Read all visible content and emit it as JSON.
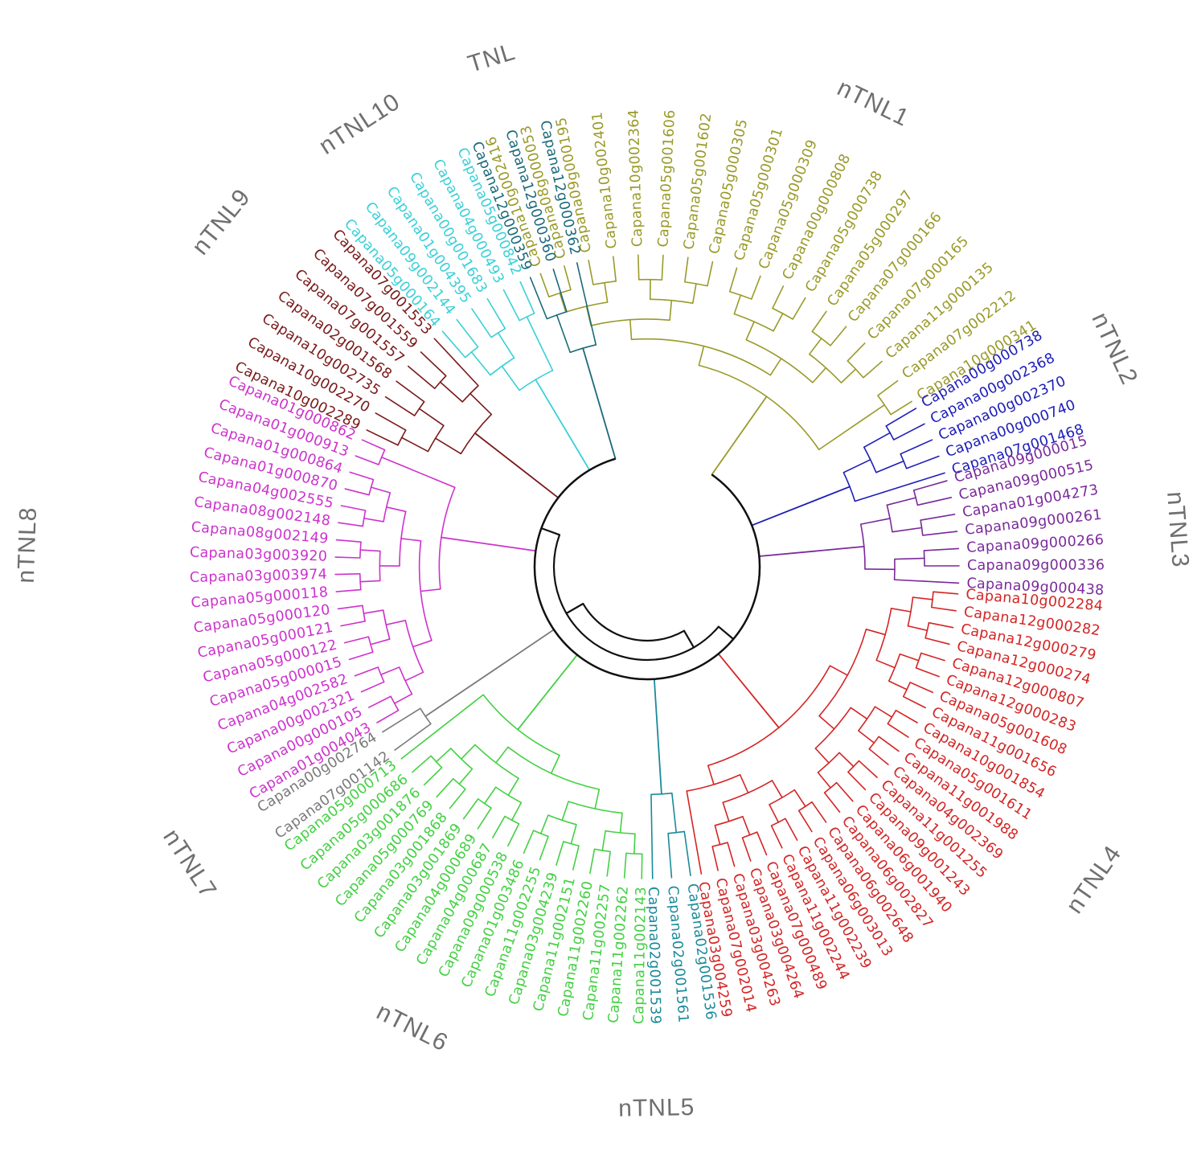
{
  "diagram": {
    "type": "circular-phylogenetic-tree",
    "clades": [
      {
        "name": "nTNL1",
        "color": "#9a9a2a",
        "leaves": [
          "Capana10g002416",
          "Capana08g000053",
          "Capana09g000195",
          "Capana10g002401",
          "Capana10g002364",
          "Capana05g001606",
          "Capana05g001602",
          "Capana05g000305",
          "Capana05g000301",
          "Capana05g000309",
          "Capana00g000808",
          "Capana05g000738",
          "Capana05g000297",
          "Capana07g000166",
          "Capana07g000165",
          "Capana11g000135",
          "Capana07g002212",
          "Capana10g000341"
        ]
      },
      {
        "name": "nTNL2",
        "color": "#1d1db8",
        "leaves": [
          "Capana00g000738",
          "Capana00g002368",
          "Capana00g002370",
          "Capana00g000740",
          "Capana07g001468"
        ]
      },
      {
        "name": "nTNL3",
        "color": "#7a2a9a",
        "leaves": [
          "Capana09g000015",
          "Capana09g000515",
          "Capana01g004273",
          "Capana09g000261",
          "Capana09g000266",
          "Capana09g000336",
          "Capana09g000438"
        ]
      },
      {
        "name": "nTNL4",
        "color": "#d42525",
        "leaves": [
          "Capana10g002284",
          "Capana12g000282",
          "Capana12g000279",
          "Capana12g000274",
          "Capana12g000807",
          "Capana12g000283",
          "Capana05g001608",
          "Capana11g001656",
          "Capana10g001854",
          "Capana05g001611",
          "Capana11g001988",
          "Capana04g002369",
          "Capana11g001255",
          "Capana09g001243",
          "Capana06g001940",
          "Capana06g002827",
          "Capana06g002648",
          "Capana06g003013",
          "Capana11g002239",
          "Capana11g002244",
          "Capana07g000489",
          "Capana03g004264",
          "Capana03g004263",
          "Capana07g002014",
          "Capana03g004259"
        ]
      },
      {
        "name": "nTNL5",
        "color": "#1a8a9a",
        "leaves": [
          "Capana02g001536",
          "Capana02g001561",
          "Capana02g001539"
        ]
      },
      {
        "name": "nTNL6",
        "color": "#44d044",
        "leaves": [
          "Capana11g002143",
          "Capana11g002262",
          "Capana11g002257",
          "Capana11g002260",
          "Capana11g002151",
          "Capana03g004239",
          "Capana11g002255",
          "Capana01g003486",
          "Capana09g000538",
          "Capana04g000687",
          "Capana04g000689",
          "Capana03g001869",
          "Capana03g001868",
          "Capana05g000769",
          "Capana03g001876",
          "Capana05g000686",
          "Capana05g000713"
        ]
      },
      {
        "name": "nTNL7",
        "color": "#7a7a7a",
        "leaves": [
          "Capana07g001142",
          "Capana00g002764"
        ]
      },
      {
        "name": "nTNL8",
        "color": "#cc33cc",
        "leaves": [
          "Capana01g004043",
          "Capana00g000105",
          "Capana00g002321",
          "Capana04g002582",
          "Capana05g000015",
          "Capana05g000122",
          "Capana05g000121",
          "Capana05g000120",
          "Capana05g000118",
          "Capana03g003974",
          "Capana03g003920",
          "Capana08g002149",
          "Capana08g002148",
          "Capana04g002555",
          "Capana01g000870",
          "Capana01g000864",
          "Capana01g000913",
          "Capana01g000862"
        ]
      },
      {
        "name": "nTNL9",
        "color": "#7a1a1a",
        "leaves": [
          "Capana10g002289",
          "Capana10g002270",
          "Capana10g002735",
          "Capana02g001568",
          "Capana07g001557",
          "Capana07g001559",
          "Capana07g001553"
        ]
      },
      {
        "name": "nTNL10",
        "color": "#3ad0d8",
        "leaves": [
          "Capana05g000164",
          "Capana09g002144",
          "Capana01g004395",
          "Capana00g001683",
          "Capana04g000493",
          "Capana05g000842"
        ]
      },
      {
        "name": "TNL",
        "color": "#1a6a7a",
        "leaves": [
          "Capana12g000359",
          "Capana12g000360",
          "Capana12g000362"
        ]
      }
    ]
  }
}
